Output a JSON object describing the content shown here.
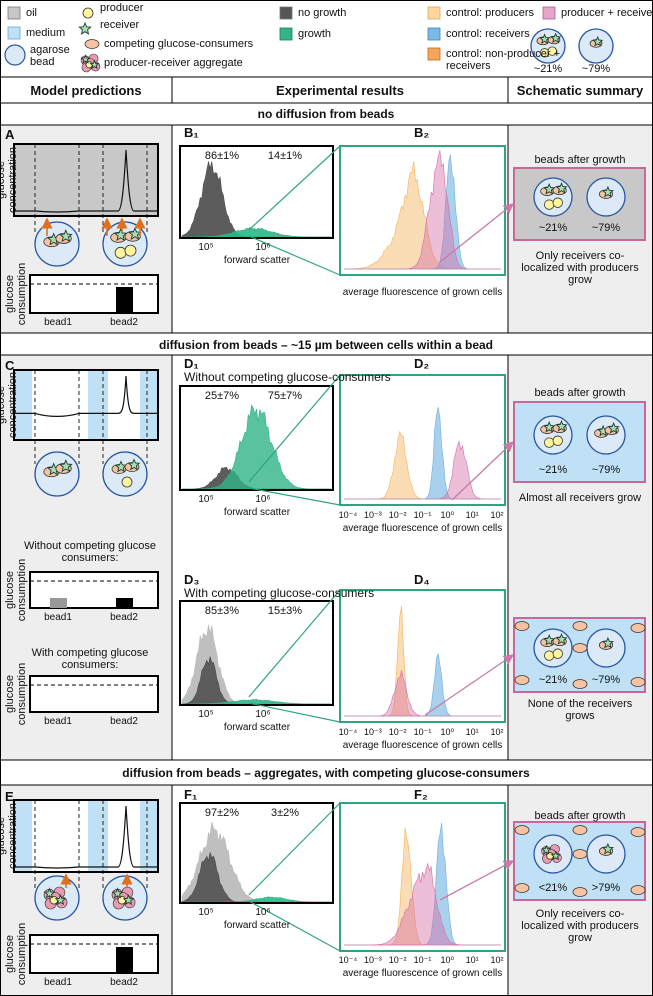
{
  "legend": {
    "oil": "oil",
    "medium": "medium",
    "bead": "agarose bead",
    "producer": "producer",
    "receiver": "receiver",
    "consumers": "competing glucose-consumers",
    "aggregate": "producer-receiver aggregate",
    "no_growth": "no growth",
    "growth": "growth",
    "ctrl_producers": "control: producers",
    "ctrl_receivers": "control: receivers",
    "ctrl_nonproducer": "control: non-producer + receivers",
    "prod_receivers": "producer + receivers",
    "pct_left": "~21%",
    "pct_right": "~79%"
  },
  "header": {
    "model": "Model predictions",
    "experimental": "Experimental results",
    "summary": "Schematic summary"
  },
  "sections": [
    {
      "title": "no diffusion from beads",
      "letter": "A",
      "model": {
        "conc": "glucose concentration",
        "plots": [
          {
            "cons": "glucose consumption",
            "bead1": "bead1",
            "bead2": "bead2"
          }
        ]
      },
      "scatter": [
        {
          "letter": "B₁",
          "left": "86±1%",
          "right": "14±1%",
          "ticks": [
            "10⁵",
            "10⁶"
          ],
          "xlabel": "forward scatter"
        }
      ],
      "fluo": [
        {
          "letter": "B₂",
          "xlabel": "average fluorescence of grown cells"
        }
      ],
      "summary": [
        {
          "heading": "beads after growth",
          "left": "~21%",
          "right": "~79%",
          "caption": "Only receivers co-localized with producers grow"
        }
      ]
    },
    {
      "title": "diffusion from beads – ~15 µm between cells within a bead",
      "letter": "C",
      "model": {
        "conc": "glucose concentration",
        "plots": [
          {
            "caption": "Without competing glucose consumers:",
            "cons": "glucose consumption",
            "bead1": "bead1",
            "bead2": "bead2"
          },
          {
            "caption": "With competing glucose consumers:",
            "cons": "glucose consumption",
            "bead1": "bead1",
            "bead2": "bead2"
          }
        ]
      },
      "scatter": [
        {
          "letter": "D₁",
          "sub": "Without competing glucose-consumers",
          "left": "25±7%",
          "right": "75±7%",
          "ticks": [
            "10⁵",
            "10⁶"
          ],
          "xlabel": "forward scatter"
        },
        {
          "letter": "D₃",
          "sub": "With competing glucose-consumers",
          "left": "85±3%",
          "right": "15±3%",
          "ticks": [
            "10⁵",
            "10⁶"
          ],
          "xlabel": "forward scatter"
        }
      ],
      "fluo": [
        {
          "letter": "D₂",
          "ticks": [
            "10⁻⁴",
            "10⁻³",
            "10⁻²",
            "10⁻¹",
            "10⁰",
            "10¹",
            "10²"
          ],
          "xlabel": "average fluorescence of grown cells"
        },
        {
          "letter": "D₄",
          "ticks": [
            "10⁻⁴",
            "10⁻³",
            "10⁻²",
            "10⁻¹",
            "10⁰",
            "10¹",
            "10²"
          ],
          "xlabel": "average fluorescence of grown cells"
        }
      ],
      "summary": [
        {
          "heading": "beads after growth",
          "left": "~21%",
          "right": "~79%",
          "caption": "Almost all receivers grow"
        },
        {
          "left": "~21%",
          "right": "~79%",
          "caption": "None of the receivers grows"
        }
      ]
    },
    {
      "title": "diffusion from beads – aggregates, with competing glucose-consumers",
      "letter": "E",
      "model": {
        "conc": "glucose concentration",
        "plots": [
          {
            "cons": "glucose consumption",
            "bead1": "bead1",
            "bead2": "bead2"
          }
        ]
      },
      "scatter": [
        {
          "letter": "F₁",
          "left": "97±2%",
          "right": "3±2%",
          "ticks": [
            "10⁵",
            "10⁶"
          ],
          "xlabel": "forward scatter"
        }
      ],
      "fluo": [
        {
          "letter": "F₂",
          "ticks": [
            "10⁻⁴",
            "10⁻³",
            "10⁻²",
            "10⁻¹",
            "10⁰",
            "10¹",
            "10²"
          ],
          "xlabel": "average fluorescence of grown cells"
        }
      ],
      "summary": [
        {
          "heading": "beads after growth",
          "left": "<21%",
          "right": ">79%",
          "caption": "Only receivers co-localized with producers grow"
        }
      ]
    }
  ]
}
